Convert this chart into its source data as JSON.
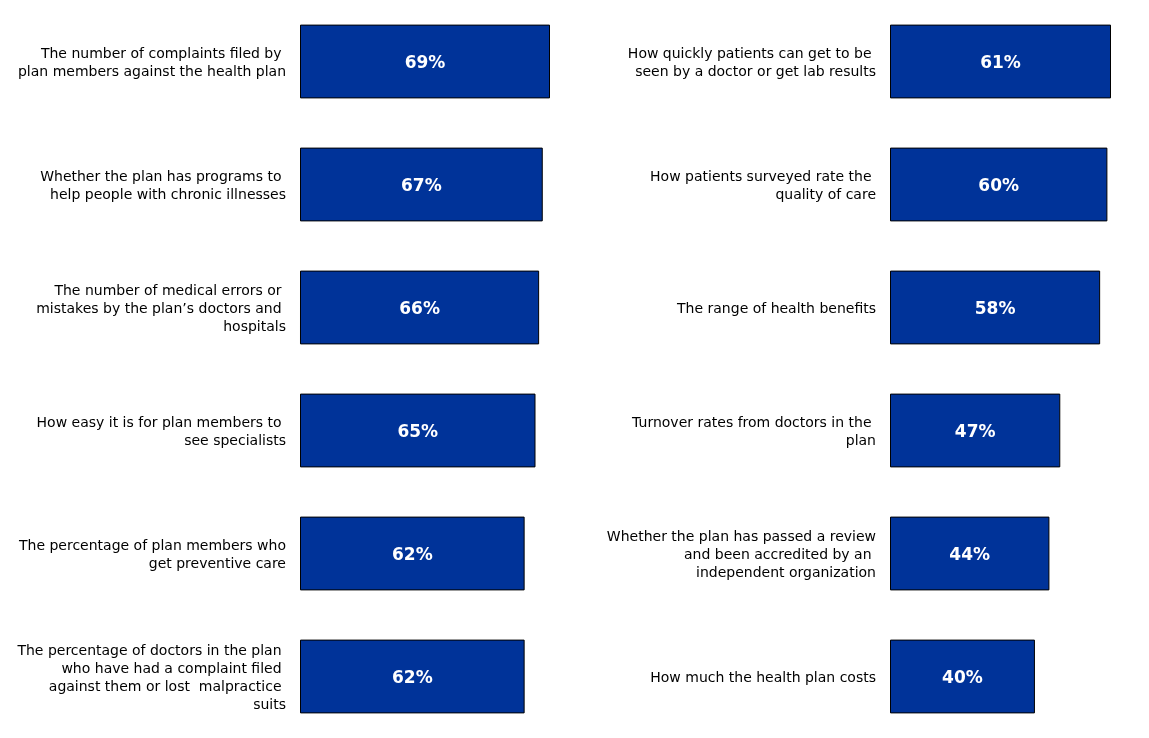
{
  "chart_data": [
    {
      "type": "bar",
      "orientation": "horizontal",
      "categories": [
        "The number of complaints filed by plan members against the health plan",
        "Whether the plan has programs to help people with chronic illnesses",
        "The number of medical errors or mistakes by the plan’s doctors and hospitals",
        "How easy it is for plan members to see specialists",
        "The percentage of plan members who get preventive care",
        "The percentage of doctors in the plan who have had a complaint filed against them or lost  malpractice suits"
      ],
      "values": [
        69,
        67,
        66,
        65,
        62,
        62
      ],
      "color": "#003399",
      "value_labels": [
        "69%",
        "67%",
        "66%",
        "65%",
        "62%",
        "62%"
      ]
    },
    {
      "type": "bar",
      "orientation": "horizontal",
      "categories": [
        "How quickly patients can get to be seen by a doctor or get lab results",
        "How patients surveyed rate the quality of care",
        "The range of health benefits",
        "Turnover rates from doctors in the plan",
        "Whether the plan has passed a review and been accredited by an independent organization",
        "How much the health plan costs"
      ],
      "values": [
        61,
        60,
        58,
        47,
        44,
        40
      ],
      "color": "#003399",
      "value_labels": [
        "61%",
        "60%",
        "58%",
        "47%",
        "44%",
        "40%"
      ]
    }
  ]
}
